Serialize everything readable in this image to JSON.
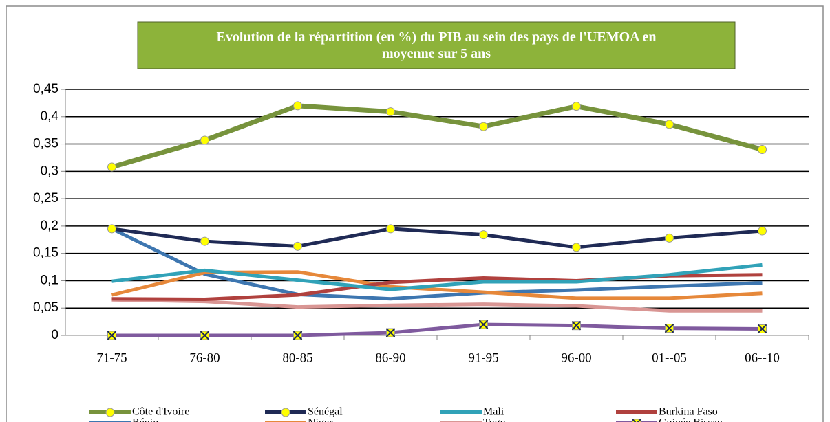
{
  "chart_data": {
    "type": "line",
    "title": "Evolution de la répartition (en %) du PIB au sein des pays de l'UEMOA en moyenne sur 5 ans",
    "categories": [
      "71-75",
      "76-80",
      "80-85",
      "86-90",
      "91-95",
      "96-00",
      "01--05",
      "06--10"
    ],
    "ylim": [
      0,
      0.45
    ],
    "yticks": [
      0,
      {
        "value": 0.05,
        "label": "0,05"
      },
      {
        "value": 0.1,
        "label": "0,1"
      },
      {
        "value": 0.15,
        "label": "0,15"
      },
      {
        "value": 0.2,
        "label": "0,2"
      },
      {
        "value": 0.25,
        "label": "0,25"
      },
      {
        "value": 0.3,
        "label": "0,3"
      },
      {
        "value": 0.35,
        "label": "0,35"
      },
      {
        "value": 0.4,
        "label": "0,4"
      },
      {
        "value": 0.45,
        "label": "0,45"
      }
    ],
    "grid": true,
    "series": [
      {
        "name": "Côte d'Ivoire",
        "color": "#77933c",
        "marker": "circle",
        "values": [
          0.308,
          0.357,
          0.42,
          0.409,
          0.382,
          0.419,
          0.386,
          0.34
        ]
      },
      {
        "name": "Sénégal",
        "color": "#1f2a55",
        "marker": "circle",
        "values": [
          0.195,
          0.172,
          0.163,
          0.195,
          0.184,
          0.161,
          0.178,
          0.191
        ]
      },
      {
        "name": "Mali",
        "color": "#31a2b8",
        "values": [
          0.099,
          0.119,
          0.101,
          0.084,
          0.098,
          0.098,
          0.111,
          0.129
        ]
      },
      {
        "name": "Burkina Faso",
        "color": "#b0413e",
        "values": [
          0.067,
          0.066,
          0.074,
          0.097,
          0.105,
          0.1,
          0.109,
          0.111
        ]
      },
      {
        "name": "Bénin",
        "color": "#3d76b0",
        "values": [
          0.195,
          0.112,
          0.075,
          0.067,
          0.078,
          0.083,
          0.09,
          0.096
        ]
      },
      {
        "name": "Niger",
        "color": "#e6883a",
        "values": [
          0.074,
          0.115,
          0.116,
          0.089,
          0.079,
          0.068,
          0.068,
          0.077
        ]
      },
      {
        "name": "Togo",
        "color": "#d99694",
        "values": [
          0.065,
          0.062,
          0.052,
          0.055,
          0.057,
          0.054,
          0.045,
          0.045
        ]
      },
      {
        "name": "Guinée Bissau",
        "color": "#7f5a9e",
        "marker": "x-square",
        "values": [
          0,
          0,
          0,
          0.005,
          0.02,
          0.018,
          0.013,
          0.012
        ]
      }
    ]
  }
}
